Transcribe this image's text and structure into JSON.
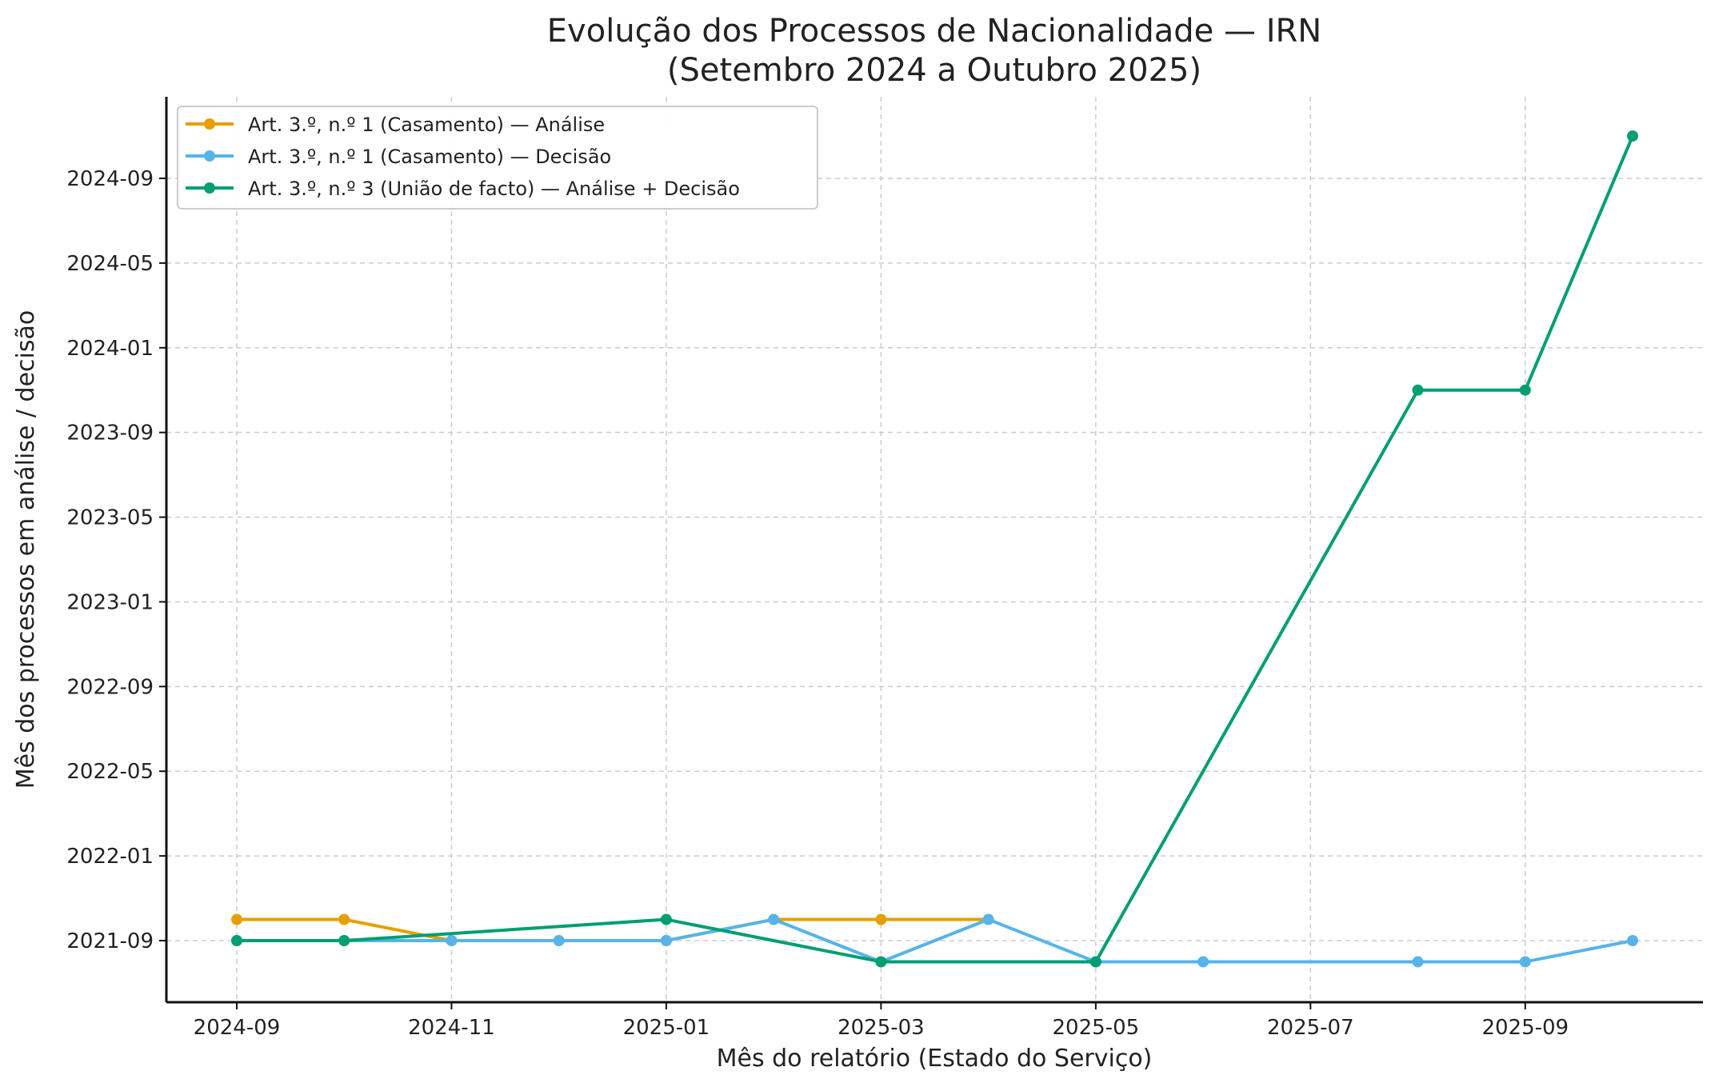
{
  "chart_data": {
    "type": "line",
    "title": "Evolução dos Processos de Nacionalidade — IRN",
    "subtitle": "(Setembro 2024 a Outubro 2025)",
    "xlabel": "Mês do relatório (Estado do Serviço)",
    "ylabel": "Mês dos processos em análise / decisão",
    "x": [
      "2024-09",
      "2024-10",
      "2024-11",
      "2024-12",
      "2025-01",
      "2025-02",
      "2025-03",
      "2025-04",
      "2025-05",
      "2025-06",
      "2025-07",
      "2025-08",
      "2025-09",
      "2025-10"
    ],
    "xticks": [
      "2024-09",
      "2024-11",
      "2025-01",
      "2025-03",
      "2025-05",
      "2025-07",
      "2025-09"
    ],
    "yticks": [
      "2021-09",
      "2022-01",
      "2022-05",
      "2022-09",
      "2023-01",
      "2023-05",
      "2023-09",
      "2024-01",
      "2024-05",
      "2024-09"
    ],
    "ylim": [
      "2021-06",
      "2025-01"
    ],
    "xlim": [
      "2024-08",
      "2025-11"
    ],
    "grid": true,
    "legend_position": "top-left",
    "series": [
      {
        "name": "Art. 3.º, n.º 1 (Casamento) — Análise",
        "color": "#E69F00",
        "values": [
          "2021-10",
          "2021-10",
          "2021-09",
          "2021-09",
          "2021-09",
          "2021-10",
          "2021-10",
          "2021-10",
          null,
          null,
          null,
          null,
          null,
          null
        ]
      },
      {
        "name": "Art. 3.º, n.º 1 (Casamento) — Decisão",
        "color": "#56B4E9",
        "values": [
          "2021-09",
          "2021-09",
          "2021-09",
          "2021-09",
          "2021-09",
          "2021-10",
          "2021-08",
          "2021-10",
          "2021-08",
          "2021-08",
          null,
          "2021-08",
          "2021-08",
          "2021-09"
        ]
      },
      {
        "name": "Art. 3.º, n.º 3 (União de facto) — Análise + Decisão",
        "color": "#009E73",
        "values": [
          "2021-09",
          "2021-09",
          null,
          null,
          "2021-10",
          null,
          "2021-08",
          null,
          "2021-08",
          null,
          null,
          "2023-11",
          "2023-11",
          "2024-11"
        ]
      }
    ]
  }
}
